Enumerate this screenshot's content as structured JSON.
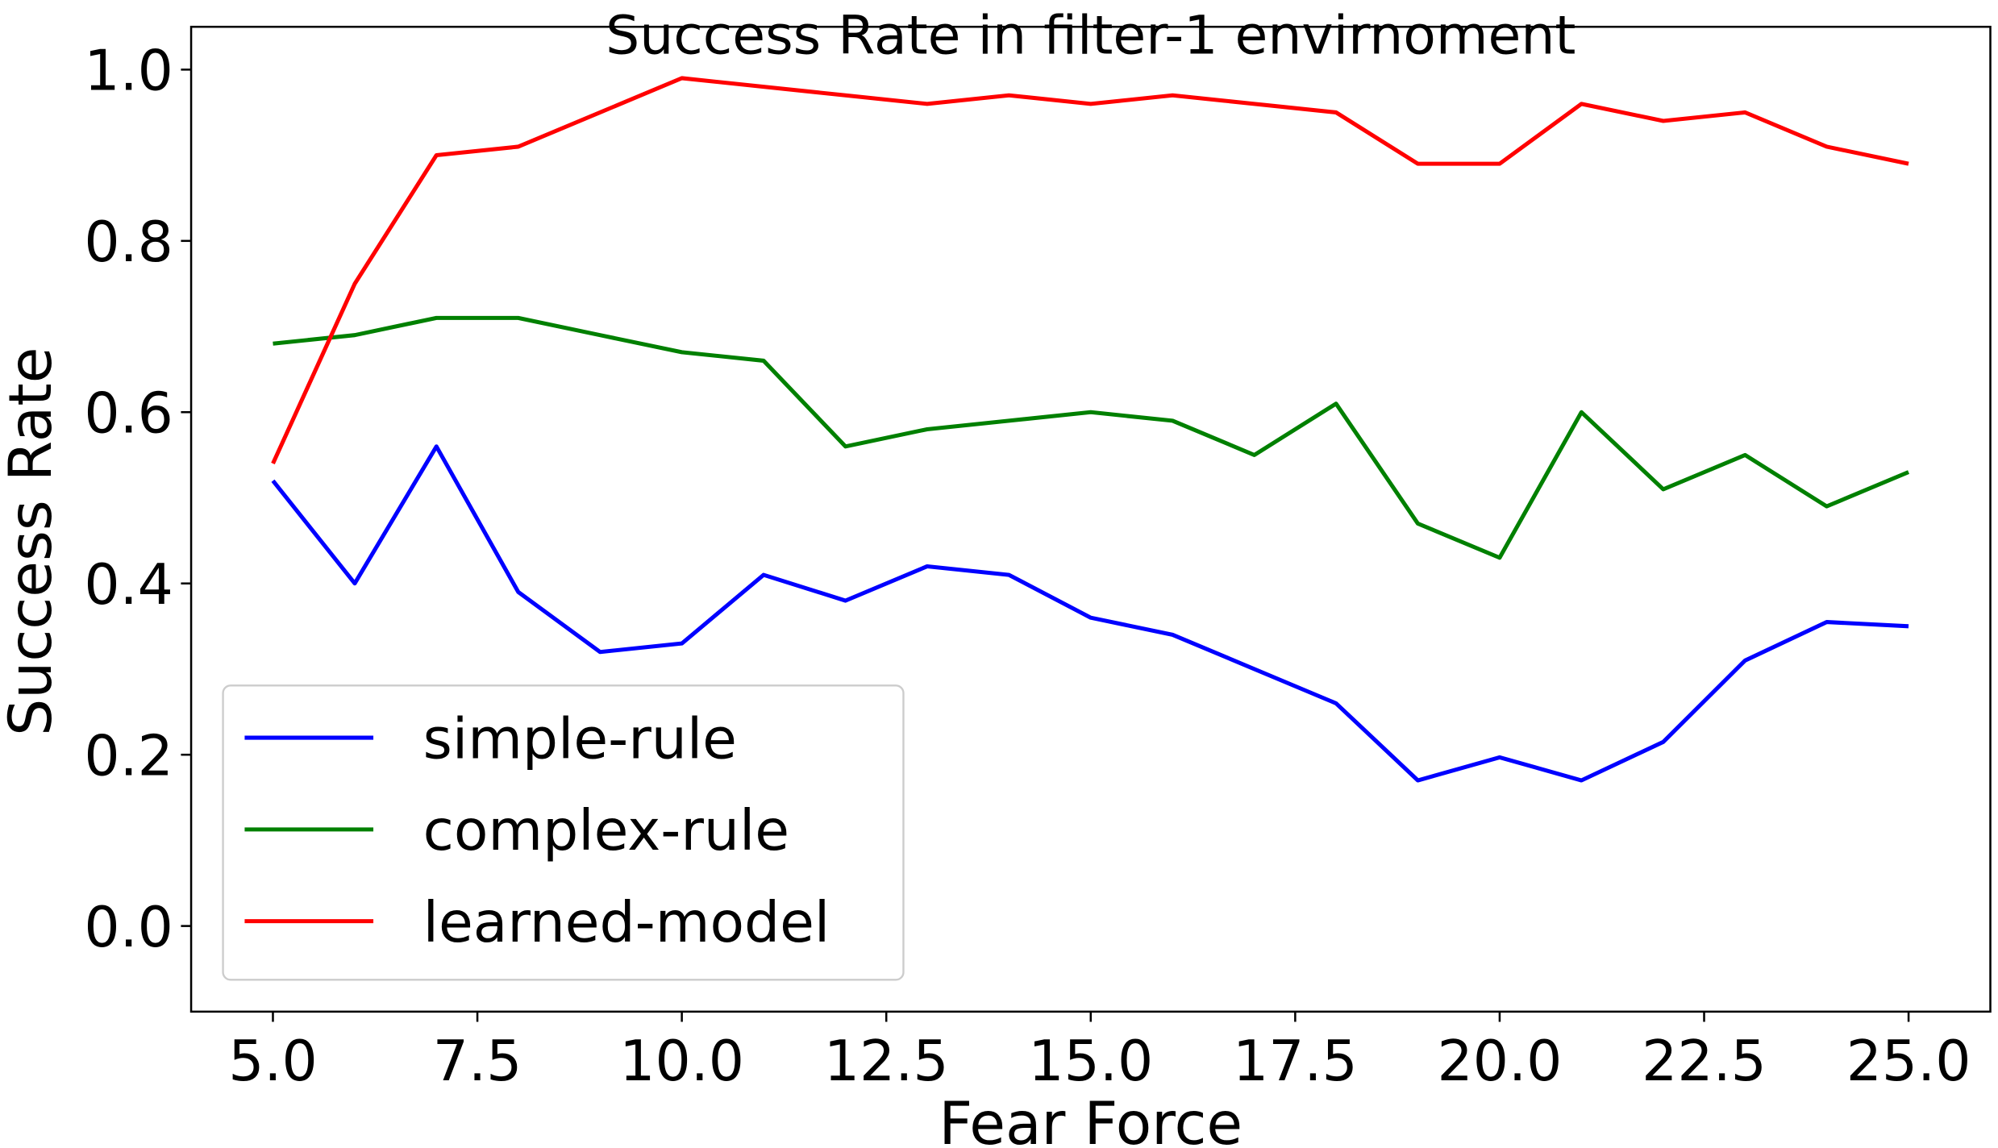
{
  "chart_data": {
    "type": "line",
    "title": "Success Rate in filter-1 envirnoment",
    "xlabel": "Fear Force",
    "ylabel": "Success Rate",
    "xlim": [
      4,
      26
    ],
    "ylim": [
      -0.1,
      1.05
    ],
    "xticks": [
      "5.0",
      "7.5",
      "10.0",
      "12.5",
      "15.0",
      "17.5",
      "20.0",
      "22.5",
      "25.0"
    ],
    "xtick_values": [
      5,
      7.5,
      10,
      12.5,
      15,
      17.5,
      20,
      22.5,
      25
    ],
    "yticks": [
      "0.0",
      "0.2",
      "0.4",
      "0.6",
      "0.8",
      "1.0"
    ],
    "ytick_values": [
      0,
      0.2,
      0.4,
      0.6,
      0.8,
      1.0
    ],
    "grid": false,
    "legend_position": "lower-left",
    "x": [
      5,
      6,
      7,
      8,
      9,
      10,
      11,
      12,
      13,
      14,
      15,
      16,
      17,
      18,
      19,
      20,
      21,
      22,
      23,
      24,
      25
    ],
    "series": [
      {
        "name": "simple-rule",
        "color": "#0000ff",
        "values": [
          0.52,
          0.4,
          0.56,
          0.39,
          0.32,
          0.33,
          0.41,
          0.38,
          0.42,
          0.41,
          0.36,
          0.34,
          0.3,
          0.26,
          0.17,
          0.197,
          0.17,
          0.215,
          0.31,
          0.355,
          0.35
        ]
      },
      {
        "name": "complex-rule",
        "color": "#008000",
        "values": [
          0.68,
          0.69,
          0.71,
          0.71,
          0.69,
          0.67,
          0.66,
          0.56,
          0.58,
          0.59,
          0.6,
          0.59,
          0.55,
          0.61,
          0.47,
          0.43,
          0.6,
          0.51,
          0.55,
          0.49,
          0.53
        ]
      },
      {
        "name": "learned-model",
        "color": "#ff0000",
        "values": [
          0.54,
          0.75,
          0.9,
          0.91,
          0.95,
          0.99,
          0.98,
          0.97,
          0.96,
          0.97,
          0.96,
          0.97,
          0.96,
          0.95,
          0.89,
          0.89,
          0.96,
          0.94,
          0.95,
          0.91,
          0.89
        ]
      }
    ]
  }
}
